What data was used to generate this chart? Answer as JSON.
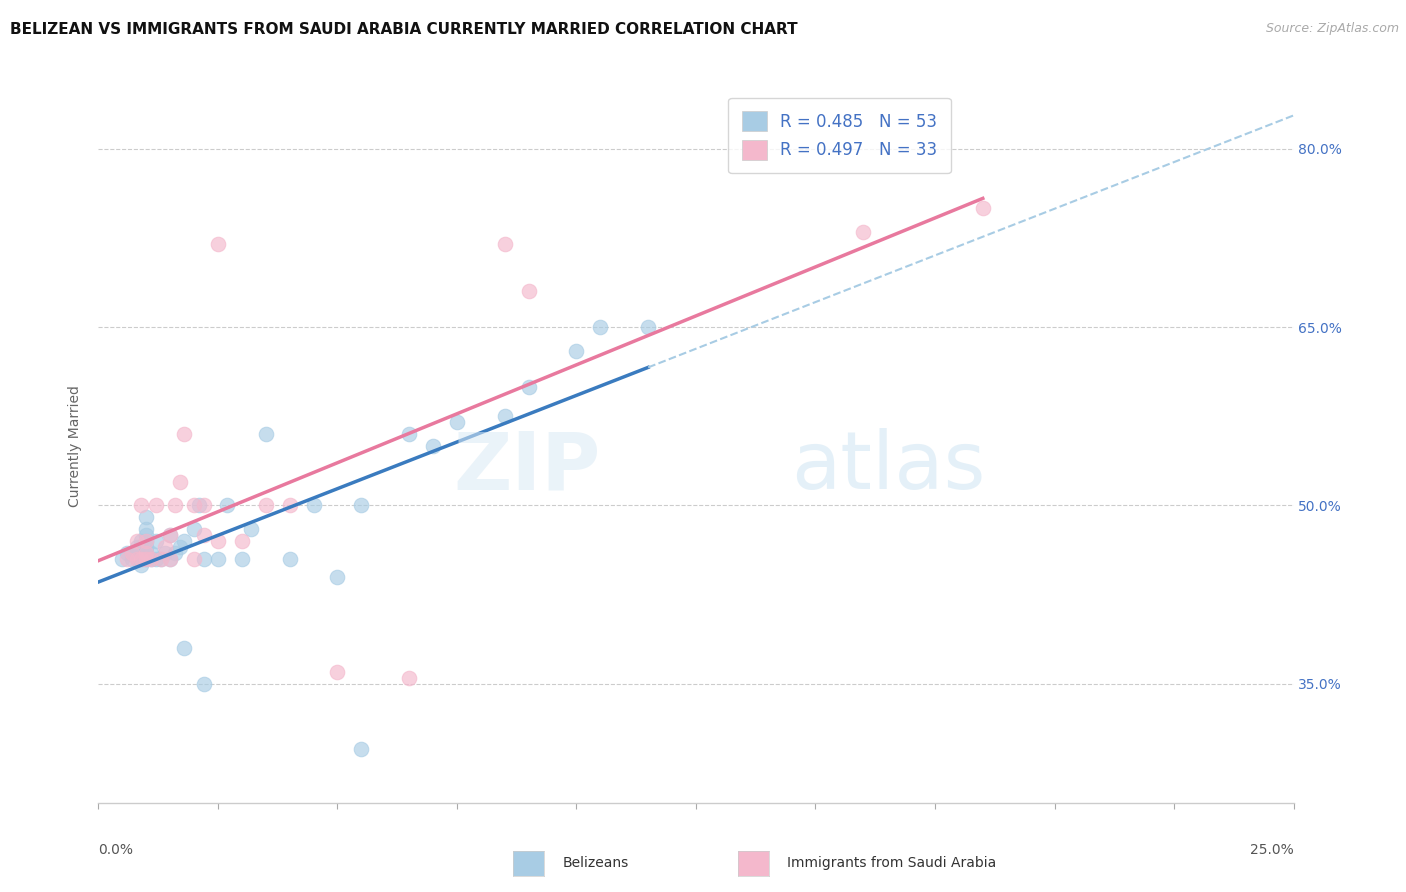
{
  "title": "BELIZEAN VS IMMIGRANTS FROM SAUDI ARABIA CURRENTLY MARRIED CORRELATION CHART",
  "source": "Source: ZipAtlas.com",
  "xlabel_belizean": "Belizeans",
  "xlabel_saudi": "Immigrants from Saudi Arabia",
  "ylabel": "Currently Married",
  "r_belizean": 0.485,
  "n_belizean": 53,
  "r_saudi": 0.497,
  "n_saudi": 33,
  "x_min": 0.0,
  "x_max": 0.25,
  "y_min": 0.25,
  "y_max": 0.85,
  "y_ticks": [
    0.35,
    0.5,
    0.65,
    0.8
  ],
  "y_tick_labels": [
    "35.0%",
    "50.0%",
    "65.0%",
    "80.0%"
  ],
  "color_blue_scatter": "#a8cce4",
  "color_pink_scatter": "#f4b8cc",
  "color_blue_line": "#3a7bbf",
  "color_pink_line": "#e8799e",
  "color_blue_dash": "#a8cce4",
  "belizean_x": [
    0.005,
    0.006,
    0.007,
    0.007,
    0.008,
    0.008,
    0.008,
    0.009,
    0.009,
    0.009,
    0.009,
    0.009,
    0.01,
    0.01,
    0.01,
    0.01,
    0.01,
    0.01,
    0.01,
    0.011,
    0.011,
    0.012,
    0.012,
    0.013,
    0.014,
    0.015,
    0.015,
    0.016,
    0.017,
    0.018,
    0.02,
    0.021,
    0.022,
    0.025,
    0.027,
    0.03,
    0.032,
    0.035,
    0.04,
    0.045,
    0.05,
    0.055,
    0.065,
    0.07,
    0.075,
    0.085,
    0.09,
    0.1,
    0.105,
    0.115,
    0.018,
    0.022,
    0.055
  ],
  "belizean_y": [
    0.455,
    0.46,
    0.455,
    0.46,
    0.455,
    0.46,
    0.465,
    0.45,
    0.455,
    0.46,
    0.465,
    0.47,
    0.455,
    0.46,
    0.465,
    0.47,
    0.475,
    0.48,
    0.49,
    0.455,
    0.46,
    0.455,
    0.47,
    0.455,
    0.46,
    0.455,
    0.475,
    0.46,
    0.465,
    0.47,
    0.48,
    0.5,
    0.455,
    0.455,
    0.5,
    0.455,
    0.48,
    0.56,
    0.455,
    0.5,
    0.44,
    0.5,
    0.56,
    0.55,
    0.57,
    0.575,
    0.6,
    0.63,
    0.65,
    0.65,
    0.38,
    0.35,
    0.295
  ],
  "saudi_x": [
    0.006,
    0.007,
    0.008,
    0.008,
    0.009,
    0.009,
    0.01,
    0.01,
    0.01,
    0.011,
    0.012,
    0.013,
    0.014,
    0.015,
    0.015,
    0.016,
    0.017,
    0.018,
    0.02,
    0.02,
    0.022,
    0.025,
    0.03,
    0.035,
    0.04,
    0.05,
    0.065,
    0.085,
    0.09,
    0.16,
    0.185,
    0.022,
    0.025
  ],
  "saudi_y": [
    0.455,
    0.46,
    0.455,
    0.47,
    0.455,
    0.5,
    0.455,
    0.46,
    0.47,
    0.455,
    0.5,
    0.455,
    0.465,
    0.455,
    0.475,
    0.5,
    0.52,
    0.56,
    0.5,
    0.455,
    0.5,
    0.47,
    0.47,
    0.5,
    0.5,
    0.36,
    0.355,
    0.72,
    0.68,
    0.73,
    0.75,
    0.475,
    0.72
  ],
  "title_fontsize": 11,
  "tick_fontsize": 10,
  "legend_fontsize": 12,
  "source_fontsize": 9
}
